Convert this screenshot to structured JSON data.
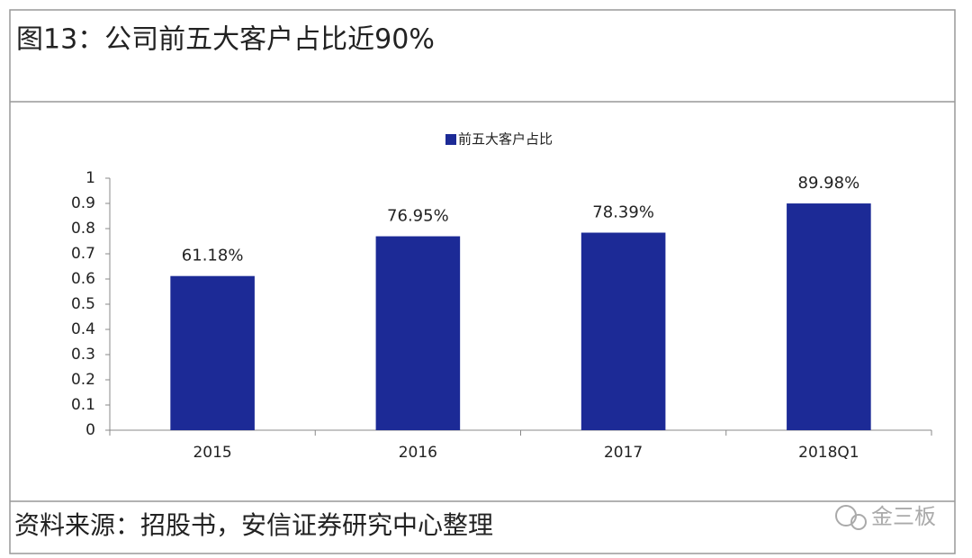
{
  "chart_data": {
    "type": "bar",
    "title": "图13：公司前五大客户占比近90%",
    "categories": [
      "2015",
      "2016",
      "2017",
      "2018Q1"
    ],
    "series": [
      {
        "name": "前五大客户占比",
        "color": "#1c2a96",
        "values": [
          0.6118,
          0.7695,
          0.7839,
          0.8998
        ],
        "value_labels": [
          "61.18%",
          "76.95%",
          "78.39%",
          "89.98%"
        ]
      }
    ],
    "ylim": [
      0,
      1
    ],
    "yticks": [
      0,
      0.1,
      0.2,
      0.3,
      0.4,
      0.5,
      0.6,
      0.7,
      0.8,
      0.9,
      1
    ],
    "legend": "top",
    "source": "资料来源：招股书，安信证券研究中心整理",
    "watermark": "金三板"
  }
}
